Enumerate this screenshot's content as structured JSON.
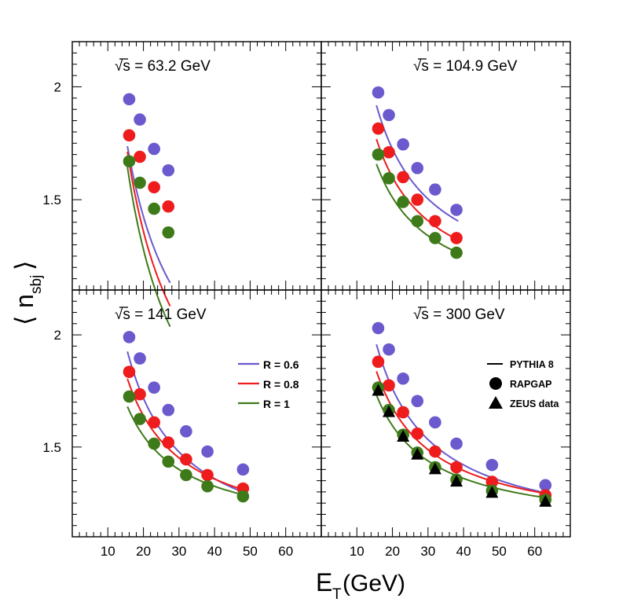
{
  "chart_data": {
    "type": "scatter",
    "ylabel_main": "n",
    "ylabel_sub": "sbj",
    "xlabel_main": "E",
    "xlabel_sub": "T",
    "xlabel_unit": " (GeV)",
    "xlim": [
      0,
      70
    ],
    "ylim": [
      1.1,
      2.2
    ],
    "xticks": [
      10,
      20,
      30,
      40,
      50,
      60
    ],
    "yticks": [
      1.5,
      2
    ],
    "ytick_labels": [
      "1.5",
      "2"
    ],
    "colors": {
      "R06": "#6a5acd",
      "R08": "#ee1c1c",
      "R1": "#3f7a1a",
      "zeus": "#000000"
    },
    "legend_R": [
      {
        "key": "R06",
        "label": "R = 0.6"
      },
      {
        "key": "R08",
        "label": "R = 0.8"
      },
      {
        "key": "R1",
        "label": "R = 1"
      }
    ],
    "legend_style": [
      {
        "marker": "line",
        "label": "PYTHIA 8"
      },
      {
        "marker": "circle",
        "label": "RAPGAP"
      },
      {
        "marker": "triangle",
        "label": "ZEUS data"
      }
    ],
    "panels": [
      {
        "title_prefix": "√s",
        "title": " = 63.2 GeV",
        "series": [
          {
            "key": "R06",
            "name": "R = 0.6",
            "x": [
              16,
              19,
              23,
              27
            ],
            "y": [
              1.945,
              1.855,
              1.725,
              1.63
            ],
            "curve_x": [
              15.5,
              27.5
            ],
            "curve_a": 0.35,
            "curve_b": 21.5
          },
          {
            "key": "R08",
            "name": "R = 0.8",
            "x": [
              16,
              19,
              23,
              27
            ],
            "y": [
              1.785,
              1.69,
              1.555,
              1.47
            ],
            "curve_x": [
              15.5,
              27.5
            ],
            "curve_a": 0.145,
            "curve_b": 24.3
          },
          {
            "key": "R1",
            "name": "R = 1",
            "x": [
              16,
              19,
              23,
              27
            ],
            "y": [
              1.67,
              1.575,
              1.46,
              1.355
            ],
            "curve_x": [
              15.5,
              27.5
            ],
            "curve_a": 0.025,
            "curve_b": 25.1
          }
        ]
      },
      {
        "title_prefix": "√s",
        "title": " = 104.9 GeV",
        "series": [
          {
            "key": "R06",
            "name": "R = 0.6",
            "x": [
              16,
              19,
              23,
              27,
              32,
              38
            ],
            "y": [
              1.975,
              1.875,
              1.745,
              1.64,
              1.545,
              1.455
            ],
            "curve_x": [
              15.5,
              38.5
            ],
            "curve_a": 1.06,
            "curve_b": 13.3
          },
          {
            "key": "R08",
            "name": "R = 0.8",
            "x": [
              16,
              19,
              23,
              27,
              32,
              38
            ],
            "y": [
              1.815,
              1.71,
              1.6,
              1.5,
              1.405,
              1.33
            ],
            "curve_x": [
              15.5,
              38.5
            ],
            "curve_a": 1.02,
            "curve_b": 11.6
          },
          {
            "key": "R1",
            "name": "R = 1",
            "x": [
              16,
              19,
              23,
              27,
              32,
              38
            ],
            "y": [
              1.7,
              1.595,
              1.49,
              1.405,
              1.33,
              1.265
            ],
            "curve_x": [
              15.5,
              38.5
            ],
            "curve_a": 1.0,
            "curve_b": 10.2
          }
        ]
      },
      {
        "title_prefix": "√s",
        "title": " = 141 GeV",
        "series": [
          {
            "key": "R06",
            "name": "R = 0.6",
            "x": [
              16,
              19,
              23,
              27,
              32,
              38,
              48
            ],
            "y": [
              1.99,
              1.895,
              1.765,
              1.665,
              1.57,
              1.48,
              1.4
            ],
            "curve_x": [
              15.5,
              48.5
            ],
            "curve_a": 1.0,
            "curve_b": 14.35
          },
          {
            "key": "R08",
            "name": "R = 0.8",
            "x": [
              16,
              19,
              23,
              27,
              32,
              38,
              48
            ],
            "y": [
              1.835,
              1.735,
              1.61,
              1.52,
              1.445,
              1.375,
              1.315
            ],
            "curve_x": [
              15.5,
              48.5
            ],
            "curve_a": 1.075,
            "curve_b": 11.3
          },
          {
            "key": "R1",
            "name": "R = 1",
            "x": [
              16,
              19,
              23,
              27,
              32,
              38,
              48
            ],
            "y": [
              1.725,
              1.625,
              1.515,
              1.435,
              1.375,
              1.325,
              1.28
            ],
            "curve_x": [
              15.5,
              48.5
            ],
            "curve_a": 1.1,
            "curve_b": 9.0
          }
        ]
      },
      {
        "title_prefix": "√s",
        "title": " = 300 GeV",
        "series": [
          {
            "key": "R06",
            "name": "R = 0.6",
            "x": [
              16,
              19,
              23,
              27,
              32,
              38,
              48,
              63
            ],
            "y": [
              2.03,
              1.935,
              1.805,
              1.705,
              1.61,
              1.515,
              1.42,
              1.33
            ],
            "curve_x": [
              15.5,
              63.5
            ],
            "curve_a": 1.08,
            "curve_b": 13.6
          },
          {
            "key": "R08",
            "name": "R = 0.8",
            "x": [
              16,
              19,
              23,
              27,
              32,
              38,
              48,
              63
            ],
            "y": [
              1.88,
              1.775,
              1.655,
              1.56,
              1.48,
              1.41,
              1.345,
              1.285
            ],
            "curve_x": [
              15.5,
              63.5
            ],
            "curve_a": 1.115,
            "curve_b": 11.2
          },
          {
            "key": "R1",
            "name": "R = 1",
            "x": [
              16,
              19,
              23,
              27,
              32,
              38,
              48,
              63
            ],
            "y": [
              1.765,
              1.665,
              1.555,
              1.475,
              1.41,
              1.355,
              1.305,
              1.265
            ],
            "curve_x": [
              15.5,
              63.5
            ],
            "curve_a": 1.125,
            "curve_b": 9.4
          }
        ],
        "zeus_data": {
          "name": "ZEUS data",
          "x": [
            16,
            19,
            23,
            27,
            32,
            38,
            48,
            63
          ],
          "y": [
            1.75,
            1.655,
            1.545,
            1.465,
            1.4,
            1.345,
            1.295,
            1.255
          ]
        }
      }
    ]
  }
}
